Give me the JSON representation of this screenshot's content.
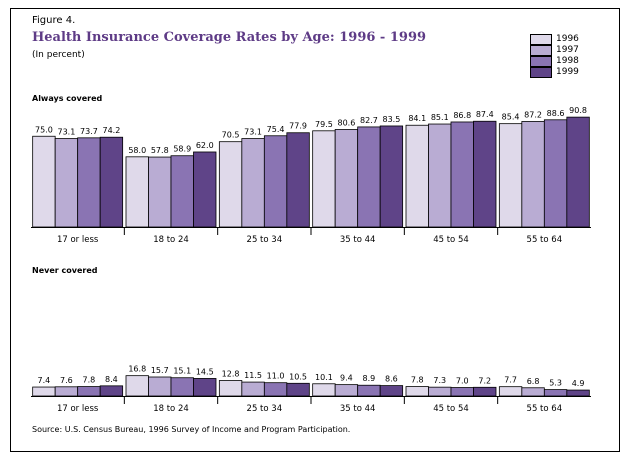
{
  "figure_label": "Figure 4.",
  "title": "Health Insurance Coverage Rates by Age: 1996 - 1999",
  "subtitle": "(In percent)",
  "source": "Source: U.S. Census Bureau, 1996 Survey of Income and Program Participation.",
  "legend": [
    "1996",
    "1997",
    "1998",
    "1999"
  ],
  "colors": [
    "#dfd9ea",
    "#b9acd3",
    "#8a74b3",
    "#5f4488"
  ],
  "chart_data": [
    {
      "type": "bar",
      "title": "Always covered",
      "categories": [
        "17 or less",
        "18 to 24",
        "25 to 34",
        "35 to 44",
        "45 to 54",
        "55 to 64"
      ],
      "series": [
        {
          "name": "1996",
          "values": [
            75.0,
            58.0,
            70.5,
            79.5,
            84.1,
            85.4
          ]
        },
        {
          "name": "1997",
          "values": [
            73.1,
            57.8,
            73.1,
            80.6,
            85.1,
            87.2
          ]
        },
        {
          "name": "1998",
          "values": [
            73.7,
            58.9,
            75.4,
            82.7,
            86.8,
            88.6
          ]
        },
        {
          "name": "1999",
          "values": [
            74.2,
            62.0,
            77.9,
            83.5,
            87.4,
            90.8
          ]
        }
      ],
      "labels": [
        [
          "75.0",
          "58.0",
          "70.5",
          "79.5",
          "84.1",
          "85.4"
        ],
        [
          "73.1",
          "57.8",
          "73.1",
          "80.6",
          "85.1",
          "87.2"
        ],
        [
          "73.7",
          "58.9",
          "75.4",
          "82.7",
          "86.8",
          "88.6"
        ],
        [
          "74.2",
          "62.0",
          "77.9",
          "83.5",
          "87.4",
          "90.8"
        ]
      ],
      "ylim": [
        0,
        100
      ],
      "grid": false
    },
    {
      "type": "bar",
      "title": "Never covered",
      "categories": [
        "17 or less",
        "18 to 24",
        "25 to 34",
        "35 to 44",
        "45 to 54",
        "55 to 64"
      ],
      "series": [
        {
          "name": "1996",
          "values": [
            7.4,
            16.8,
            12.8,
            10.1,
            7.8,
            7.7
          ]
        },
        {
          "name": "1997",
          "values": [
            7.6,
            15.7,
            11.5,
            9.4,
            7.3,
            6.8
          ]
        },
        {
          "name": "1998",
          "values": [
            7.8,
            15.1,
            11.0,
            8.9,
            7.0,
            5.3
          ]
        },
        {
          "name": "1999",
          "values": [
            8.4,
            14.5,
            10.5,
            8.6,
            7.2,
            4.9
          ]
        }
      ],
      "labels": [
        [
          "7.4",
          "16.8",
          "12.8",
          "10.1",
          "7.8",
          "7.7"
        ],
        [
          "7.6",
          "15.7",
          "11.5",
          "9.4",
          "7.3",
          "6.8"
        ],
        [
          "7.8",
          "15.1",
          "11.0",
          "8.9",
          "7.0",
          "5.3"
        ],
        [
          "8.4",
          "14.5",
          "10.5",
          "8.6",
          "7.2",
          "4.9"
        ]
      ],
      "ylim": [
        0,
        100
      ],
      "grid": false
    }
  ]
}
